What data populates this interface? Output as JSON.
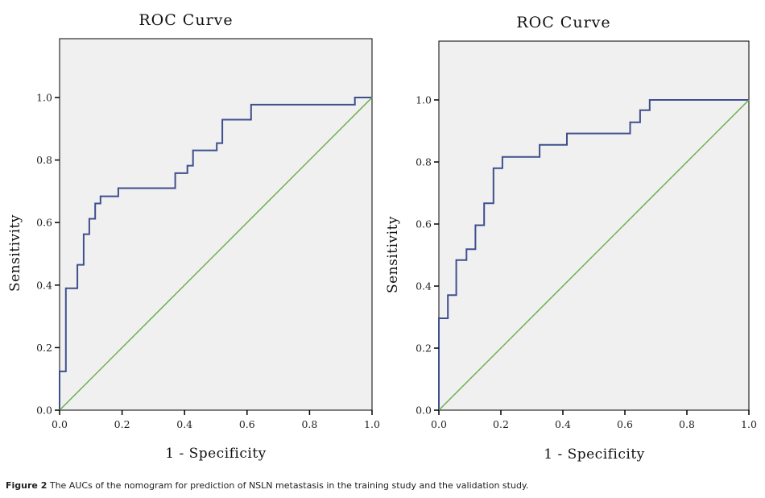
{
  "chart_data": [
    {
      "type": "line",
      "title": "ROC Curve",
      "xlabel": "1 - Specificity",
      "ylabel": "Sensitivity",
      "xlim": [
        0,
        1
      ],
      "ylim": [
        0,
        1.2
      ],
      "xticks": [
        "0.0",
        "0.2",
        "0.4",
        "0.6",
        "0.8",
        "1.0"
      ],
      "yticks": [
        "0.0",
        "0.2",
        "0.4",
        "0.6",
        "0.8",
        "1.0"
      ],
      "grid": false,
      "background": "#f0f0f0",
      "series": [
        {
          "name": "ROC",
          "color": "#3f4f8e",
          "step": true,
          "points": [
            [
              0.0,
              0.0
            ],
            [
              0.0,
              0.124
            ],
            [
              0.02,
              0.124
            ],
            [
              0.02,
              0.39
            ],
            [
              0.057,
              0.39
            ],
            [
              0.057,
              0.465
            ],
            [
              0.077,
              0.465
            ],
            [
              0.077,
              0.563
            ],
            [
              0.095,
              0.563
            ],
            [
              0.095,
              0.612
            ],
            [
              0.114,
              0.612
            ],
            [
              0.114,
              0.661
            ],
            [
              0.131,
              0.661
            ],
            [
              0.131,
              0.684
            ],
            [
              0.188,
              0.684
            ],
            [
              0.188,
              0.71
            ],
            [
              0.37,
              0.71
            ],
            [
              0.37,
              0.758
            ],
            [
              0.409,
              0.758
            ],
            [
              0.409,
              0.782
            ],
            [
              0.427,
              0.782
            ],
            [
              0.427,
              0.831
            ],
            [
              0.503,
              0.831
            ],
            [
              0.503,
              0.854
            ],
            [
              0.521,
              0.854
            ],
            [
              0.521,
              0.929
            ],
            [
              0.613,
              0.929
            ],
            [
              0.613,
              0.977
            ],
            [
              0.945,
              0.977
            ],
            [
              0.945,
              1.0
            ],
            [
              1.0,
              1.0
            ]
          ]
        },
        {
          "name": "Reference line",
          "color": "#6ab04c",
          "points": [
            [
              0,
              0
            ],
            [
              1,
              1
            ]
          ]
        }
      ]
    },
    {
      "type": "line",
      "title": "ROC Curve",
      "xlabel": "1 - Specificity",
      "ylabel": "Sensitivity",
      "xlim": [
        0,
        1
      ],
      "ylim": [
        0,
        1.2
      ],
      "xticks": [
        "0.0",
        "0.2",
        "0.4",
        "0.6",
        "0.8",
        "1.0"
      ],
      "yticks": [
        "0.0",
        "0.2",
        "0.4",
        "0.6",
        "0.8",
        "1.0"
      ],
      "grid": false,
      "background": "#f0f0f0",
      "series": [
        {
          "name": "ROC",
          "color": "#3f4f8e",
          "step": true,
          "points": [
            [
              0.0,
              0.0
            ],
            [
              0.0,
              0.296
            ],
            [
              0.029,
              0.296
            ],
            [
              0.029,
              0.371
            ],
            [
              0.056,
              0.371
            ],
            [
              0.056,
              0.484
            ],
            [
              0.089,
              0.484
            ],
            [
              0.089,
              0.519
            ],
            [
              0.118,
              0.519
            ],
            [
              0.118,
              0.596
            ],
            [
              0.146,
              0.596
            ],
            [
              0.146,
              0.667
            ],
            [
              0.176,
              0.667
            ],
            [
              0.176,
              0.78
            ],
            [
              0.205,
              0.78
            ],
            [
              0.205,
              0.816
            ],
            [
              0.325,
              0.816
            ],
            [
              0.325,
              0.855
            ],
            [
              0.413,
              0.855
            ],
            [
              0.413,
              0.892
            ],
            [
              0.617,
              0.892
            ],
            [
              0.617,
              0.928
            ],
            [
              0.649,
              0.928
            ],
            [
              0.649,
              0.967
            ],
            [
              0.68,
              0.967
            ],
            [
              0.68,
              1.0
            ],
            [
              1.0,
              1.0
            ]
          ]
        },
        {
          "name": "Reference line",
          "color": "#6ab04c",
          "points": [
            [
              0,
              0
            ],
            [
              1,
              1
            ]
          ]
        }
      ]
    }
  ],
  "caption": {
    "label": "Figure 2",
    "text": " The AUCs of the nomogram for prediction of NSLN metastasis in the training study and the validation study."
  }
}
